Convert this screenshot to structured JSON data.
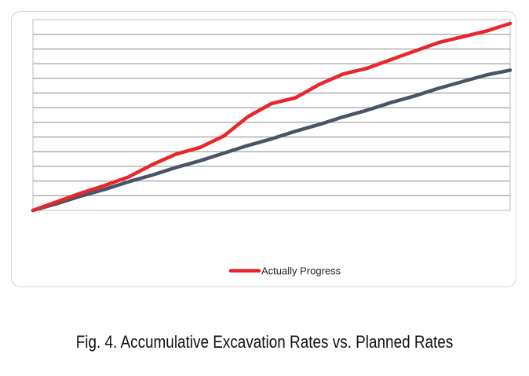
{
  "chart_data": {
    "type": "line",
    "title": "",
    "xlabel": "",
    "ylabel": "",
    "grid": true,
    "legend_position": "bottom",
    "x": [
      0,
      5,
      10,
      15,
      20,
      25,
      30,
      35,
      40,
      45,
      50,
      55,
      60,
      65,
      70,
      75,
      80,
      85,
      90,
      95,
      100
    ],
    "xlim": [
      0,
      100
    ],
    "ylim": [
      0,
      100
    ],
    "series": [
      {
        "name": "Actually Progress",
        "color": "#e8262b",
        "show_in_legend": true,
        "values": [
          0,
          4.5,
          9,
          13,
          17.5,
          24,
          29.5,
          33,
          39,
          49,
          56,
          59,
          66,
          71.5,
          74.5,
          79,
          83.5,
          88,
          91,
          94,
          98
        ]
      },
      {
        "name": "",
        "color": "#4a5468",
        "show_in_legend": false,
        "values": [
          0,
          3.5,
          7.5,
          11,
          15,
          18.5,
          22.5,
          26,
          30,
          34,
          37.5,
          41.5,
          45,
          49,
          52.5,
          56.5,
          60,
          64,
          67.5,
          71,
          73.5
        ]
      }
    ]
  },
  "caption": "Fig. 4. Accumulative Excavation Rates vs. Planned Rates"
}
